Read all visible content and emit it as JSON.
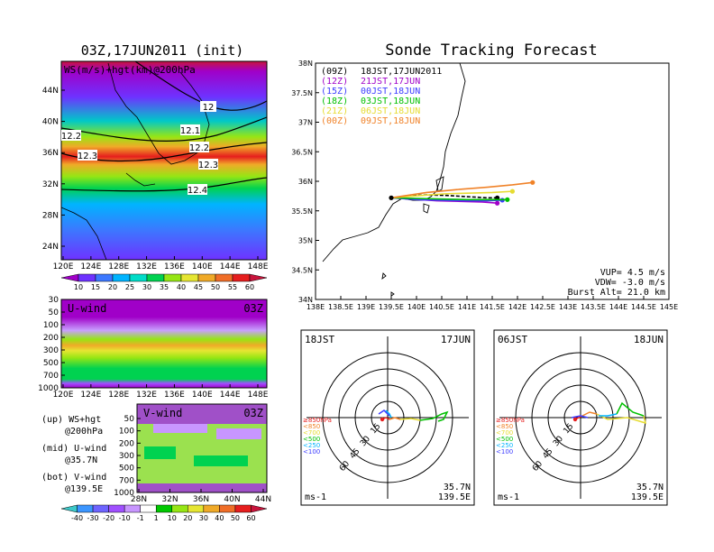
{
  "colors": {
    "track_09jst": "#000000",
    "track_21jst": "#a000c8",
    "track_00jst": "#3c3cff",
    "track_03jst": "#00c000",
    "track_06jst": "#e6dc32",
    "track_09jst_18": "#f08228"
  },
  "left": {
    "title": "03Z,17JUN2011 (init)",
    "top_map": {
      "label": "WS(m/s)+hgt(km)@200hPa",
      "y_ticks": [
        "44N",
        "40N",
        "36N",
        "32N",
        "28N",
        "24N"
      ],
      "x_ticks": [
        "120E",
        "124E",
        "128E",
        "132E",
        "136E",
        "140E",
        "144E",
        "148E"
      ],
      "contour_labels": [
        "12",
        "12.2",
        "12.1",
        "12.2",
        "12.3",
        "12.3",
        "12.4"
      ]
    },
    "ws_colorbar": {
      "labels": [
        "10",
        "15",
        "20",
        "25",
        "30",
        "35",
        "40",
        "45",
        "50",
        "55",
        "60"
      ],
      "colors": [
        "#a000c8",
        "#6e32ff",
        "#3c78ff",
        "#00b4ff",
        "#00dcc8",
        "#00d250",
        "#96e614",
        "#e6e632",
        "#f0aa28",
        "#f06e28",
        "#e61e1e",
        "#c8143c"
      ]
    },
    "u_panel": {
      "label": "U-wind",
      "time": "03Z",
      "y_ticks": [
        "30",
        "50",
        "100",
        "200",
        "300",
        "500",
        "700",
        "1000"
      ],
      "x_ticks": [
        "120E",
        "124E",
        "128E",
        "132E",
        "136E",
        "140E",
        "144E",
        "148E"
      ]
    },
    "v_panel": {
      "label": "V-wind",
      "time": "03Z",
      "y_ticks": [
        "50",
        "100",
        "200",
        "300",
        "500",
        "700",
        "1000"
      ],
      "x_ticks": [
        "28N",
        "32N",
        "36N",
        "40N",
        "44N"
      ]
    },
    "legend": {
      "up": [
        "(up) WS+hgt",
        "@200hPa"
      ],
      "mid": [
        "(mid) U-wind",
        "@35.7N"
      ],
      "bot": [
        "(bot) V-wind",
        "@139.5E"
      ]
    },
    "div_colorbar": {
      "labels": [
        "-40",
        "-30",
        "-20",
        "-10",
        "-1",
        "1",
        "10",
        "20",
        "30",
        "40",
        "50",
        "60"
      ],
      "colors": [
        "#3cc8c8",
        "#3c96ff",
        "#6e64ff",
        "#a050ff",
        "#c896ff",
        "#ffffff",
        "#00c800",
        "#96e614",
        "#e6e632",
        "#f0aa28",
        "#f06e28",
        "#e61e1e",
        "#c8143c"
      ]
    }
  },
  "right": {
    "title": "Sonde Tracking Forecast",
    "legend": [
      {
        "utc": "(09Z)",
        "jst": "18JST,17JUN2011",
        "color": "#000000"
      },
      {
        "utc": "(12Z)",
        "jst": "21JST,17JUN",
        "color": "#a000c8"
      },
      {
        "utc": "(15Z)",
        "jst": "00JST,18JUN",
        "color": "#3c3cff"
      },
      {
        "utc": "(18Z)",
        "jst": "03JST,18JUN",
        "color": "#00c000"
      },
      {
        "utc": "(21Z)",
        "jst": "06JST,18JUN",
        "color": "#e6dc32"
      },
      {
        "utc": "(00Z)",
        "jst": "09JST,18JUN",
        "color": "#f08228"
      }
    ],
    "params": [
      "VUP=  4.5 m/s",
      "VDW= -3.0 m/s",
      "Burst Alt= 21.0 km"
    ],
    "hodo_left": {
      "time": "18JST",
      "date": "17JUN",
      "lat": "35.7N",
      "lon": "139.5E",
      "unit": "ms-1",
      "ring_labels": [
        "15",
        "30",
        "45",
        "60"
      ]
    },
    "hodo_right": {
      "time": "06JST",
      "date": "18JUN",
      "lat": "35.7N",
      "lon": "139.5E",
      "unit": "ms-1",
      "ring_labels": [
        "15",
        "30",
        "45",
        "60"
      ]
    },
    "hodo_legend": [
      {
        "label": "≥850hPa",
        "color": "#e61e1e"
      },
      {
        "label": "<850",
        "color": "#f08228"
      },
      {
        "label": "<700",
        "color": "#e6dc32"
      },
      {
        "label": "<500",
        "color": "#00c000"
      },
      {
        "label": "<250",
        "color": "#00b4ff"
      },
      {
        "label": "<100",
        "color": "#3c3cff"
      }
    ]
  },
  "chart_data": {
    "type": "line",
    "title": "Sonde Tracking Forecast",
    "xlabel": "",
    "ylabel": "",
    "xlim": [
      138,
      145
    ],
    "ylim": [
      34,
      38
    ],
    "x_ticks": [
      138,
      138.5,
      139,
      139.5,
      140,
      140.5,
      141,
      141.5,
      142,
      142.5,
      143,
      143.5,
      144,
      144.5,
      145
    ],
    "x_tick_labels": [
      "138E",
      "138.5E",
      "139E",
      "139.5E",
      "140E",
      "140.5E",
      "141E",
      "141.5E",
      "142E",
      "142.5E",
      "143E",
      "143.5E",
      "144E",
      "144.5E",
      "145E"
    ],
    "y_ticks": [
      34,
      34.5,
      35,
      35.5,
      36,
      36.5,
      37,
      37.5,
      38
    ],
    "y_tick_labels": [
      "34N",
      "34.5N",
      "35N",
      "35.5N",
      "36N",
      "36.5N",
      "37N",
      "37.5N",
      "38N"
    ],
    "grid": false,
    "series": [
      {
        "name": "(09Z) 18JST,17JUN2011",
        "x": [
          139.5,
          139.8,
          140.2,
          140.6,
          141.0,
          141.4,
          141.6
        ],
        "y": [
          35.72,
          35.75,
          35.77,
          35.76,
          35.74,
          35.72,
          35.72
        ]
      },
      {
        "name": "(12Z) 21JST,17JUN",
        "x": [
          139.5,
          139.9,
          140.4,
          140.9,
          141.3,
          141.6
        ],
        "y": [
          35.72,
          35.7,
          35.67,
          35.66,
          35.65,
          35.63
        ]
      },
      {
        "name": "(15Z) 00JST,18JUN",
        "x": [
          139.5,
          140.0,
          140.5,
          141.0,
          141.4,
          141.7
        ],
        "y": [
          35.72,
          35.69,
          35.68,
          35.67,
          35.67,
          35.68
        ]
      },
      {
        "name": "(18Z) 03JST,18JUN",
        "x": [
          139.5,
          140.0,
          140.5,
          141.0,
          141.5,
          141.8
        ],
        "y": [
          35.72,
          35.71,
          35.7,
          35.69,
          35.69,
          35.69
        ]
      },
      {
        "name": "(21Z) 06JST,18JUN",
        "x": [
          139.5,
          140.1,
          140.6,
          141.1,
          141.5,
          141.9
        ],
        "y": [
          35.72,
          35.76,
          35.79,
          35.8,
          35.81,
          35.83
        ]
      },
      {
        "name": "(00Z) 09JST,18JUN",
        "x": [
          139.5,
          140.2,
          140.8,
          141.4,
          141.9,
          142.3
        ],
        "y": [
          35.72,
          35.81,
          35.86,
          35.9,
          35.94,
          35.98
        ]
      }
    ]
  }
}
